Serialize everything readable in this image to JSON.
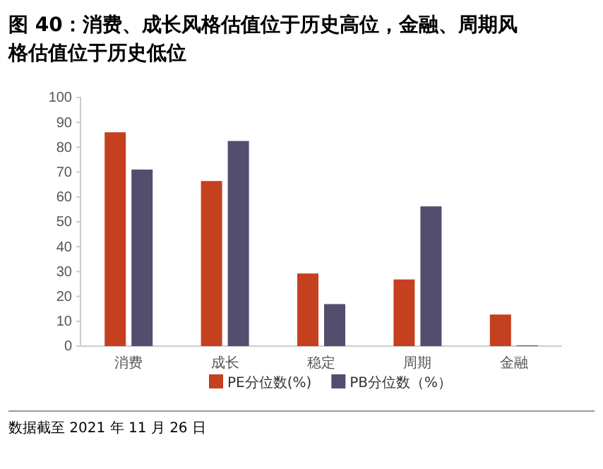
{
  "chart_data": {
    "type": "bar",
    "title": "图 40：消费、成长风格估值位于历史高位，金融、周期风格估值位于历史低位",
    "categories": [
      "消费",
      "成长",
      "稳定",
      "周期",
      "金融"
    ],
    "series": [
      {
        "name": "PE分位数(%)",
        "color": "#c4401f",
        "values": [
          86,
          66.4,
          29.2,
          26.8,
          12.7
        ]
      },
      {
        "name": "PB分位数（%）",
        "color": "#524e6e",
        "values": [
          71,
          82.5,
          16.9,
          56.2,
          0.3
        ]
      }
    ],
    "ylim": [
      0,
      100
    ],
    "yticks": [
      0,
      10,
      20,
      30,
      40,
      50,
      60,
      70,
      80,
      90,
      100
    ],
    "grid": false,
    "legend": "bottom",
    "annotations": [
      "数据截至 2021 年 11 月 26 日"
    ]
  }
}
